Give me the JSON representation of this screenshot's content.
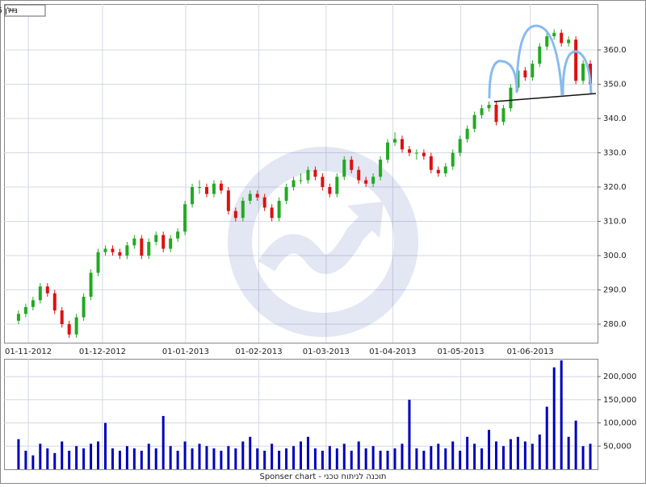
{
  "chart_data": [
    {
      "type": "candlestick",
      "name": "נזלן 15",
      "up_color": "#22aa22",
      "down_color": "#dd1111",
      "open": [
        281,
        283,
        285,
        287,
        291,
        289,
        284,
        280,
        277,
        282,
        288,
        295,
        301,
        302,
        301,
        300,
        303,
        305,
        300,
        304,
        306,
        302,
        305,
        307,
        315,
        320,
        320,
        318,
        321,
        319,
        313,
        311,
        316,
        318,
        317,
        314,
        311,
        316,
        320,
        322,
        322,
        325,
        323,
        320,
        318,
        323,
        328,
        325,
        322,
        321,
        323,
        328,
        333,
        334,
        331,
        330,
        330,
        329,
        325,
        324,
        326,
        330,
        334,
        337,
        341,
        343,
        344,
        339,
        343,
        349,
        354,
        352,
        356,
        361,
        364,
        365,
        362,
        363,
        351,
        356
      ],
      "high": [
        284,
        286,
        288,
        292,
        292,
        290,
        285,
        281,
        283,
        289,
        296,
        302,
        303,
        303,
        302,
        304,
        306,
        306,
        305,
        307,
        307,
        306,
        308,
        316,
        321,
        322,
        321,
        322,
        322,
        320,
        314,
        317,
        319,
        319,
        318,
        315,
        317,
        321,
        323,
        324,
        326,
        326,
        324,
        321,
        324,
        329,
        329,
        326,
        323,
        324,
        329,
        334,
        336,
        335,
        332,
        331,
        331,
        330,
        326,
        327,
        331,
        335,
        338,
        342,
        344,
        345,
        345,
        344,
        350,
        355,
        355,
        357,
        362,
        365,
        366,
        366,
        364,
        364,
        357,
        357
      ],
      "low": [
        280,
        282,
        284,
        286,
        288,
        283,
        279,
        276,
        276,
        281,
        287,
        294,
        300,
        300,
        299,
        299,
        302,
        299,
        299,
        303,
        301,
        301,
        304,
        306,
        314,
        318,
        317,
        317,
        318,
        312,
        310,
        310,
        315,
        316,
        313,
        310,
        310,
        315,
        319,
        321,
        321,
        322,
        319,
        317,
        317,
        322,
        324,
        321,
        320,
        320,
        322,
        327,
        332,
        330,
        329,
        328,
        328,
        324,
        323,
        323,
        325,
        329,
        333,
        336,
        340,
        342,
        338,
        338,
        342,
        348,
        351,
        351,
        355,
        360,
        363,
        361,
        361,
        350,
        350,
        349
      ],
      "close": [
        283,
        285,
        287,
        291,
        289,
        284,
        280,
        277,
        282,
        288,
        295,
        301,
        302,
        301,
        300,
        303,
        305,
        300,
        304,
        306,
        302,
        305,
        307,
        315,
        320,
        320,
        318,
        321,
        319,
        313,
        311,
        316,
        318,
        317,
        314,
        311,
        316,
        320,
        322,
        322,
        325,
        323,
        320,
        318,
        323,
        328,
        325,
        322,
        321,
        323,
        328,
        333,
        334,
        331,
        330,
        330,
        329,
        325,
        324,
        326,
        330,
        334,
        337,
        341,
        343,
        344,
        339,
        343,
        349,
        354,
        352,
        356,
        361,
        364,
        365,
        362,
        363,
        351,
        356,
        350
      ],
      "xlim": [
        -2,
        80
      ],
      "xticks": [
        {
          "value": 1.35,
          "label": "01-11-2012"
        },
        {
          "value": 11.6,
          "label": "01-12-2012"
        },
        {
          "value": 23.1,
          "label": "01-01-2013"
        },
        {
          "value": 33.2,
          "label": "01-02-2013"
        },
        {
          "value": 42.5,
          "label": "01-03-2013"
        },
        {
          "value": 51.7,
          "label": "01-04-2013"
        },
        {
          "value": 61.1,
          "label": "01-05-2013"
        },
        {
          "value": 70.7,
          "label": "01-06-2013"
        }
      ],
      "ylim": [
        274.6,
        373.4
      ],
      "yticks": [
        {
          "value": 280,
          "label": "280.0"
        },
        {
          "value": 290,
          "label": "290.0"
        },
        {
          "value": 300,
          "label": "300.0"
        },
        {
          "value": 310,
          "label": "310.0"
        },
        {
          "value": 320,
          "label": "320.0"
        },
        {
          "value": 330,
          "label": "330.0"
        },
        {
          "value": 340,
          "label": "340.0"
        },
        {
          "value": 350,
          "label": "350.0"
        },
        {
          "value": 360,
          "label": "360.0"
        }
      ],
      "grid": true
    },
    {
      "type": "bar",
      "color": "#0000bb",
      "values": [
        65000,
        40000,
        30000,
        55000,
        45000,
        35000,
        60000,
        40000,
        50000,
        45000,
        55000,
        60000,
        100000,
        45000,
        40000,
        50000,
        45000,
        40000,
        55000,
        45000,
        115000,
        50000,
        40000,
        60000,
        45000,
        55000,
        50000,
        45000,
        40000,
        50000,
        45000,
        60000,
        70000,
        45000,
        40000,
        55000,
        40000,
        45000,
        50000,
        60000,
        70000,
        45000,
        40000,
        50000,
        45000,
        55000,
        40000,
        60000,
        45000,
        50000,
        40000,
        40000,
        45000,
        55000,
        150000,
        45000,
        40000,
        50000,
        55000,
        45000,
        60000,
        40000,
        70000,
        55000,
        45000,
        85000,
        60000,
        50000,
        65000,
        70000,
        60000,
        55000,
        75000,
        135000,
        220000,
        235000,
        70000,
        105000,
        50000,
        55000
      ],
      "xlim": [
        -2,
        80
      ],
      "ylim": [
        0,
        238400
      ],
      "yticks": [
        {
          "value": 50000,
          "label": "50,000"
        },
        {
          "value": 100000,
          "label": "100,000"
        },
        {
          "value": 150000,
          "label": "150,000"
        },
        {
          "value": 200000,
          "label": "200,000"
        }
      ],
      "grid": true
    }
  ],
  "footer": "Sponser chart - תוכנה לניתוח טכני"
}
